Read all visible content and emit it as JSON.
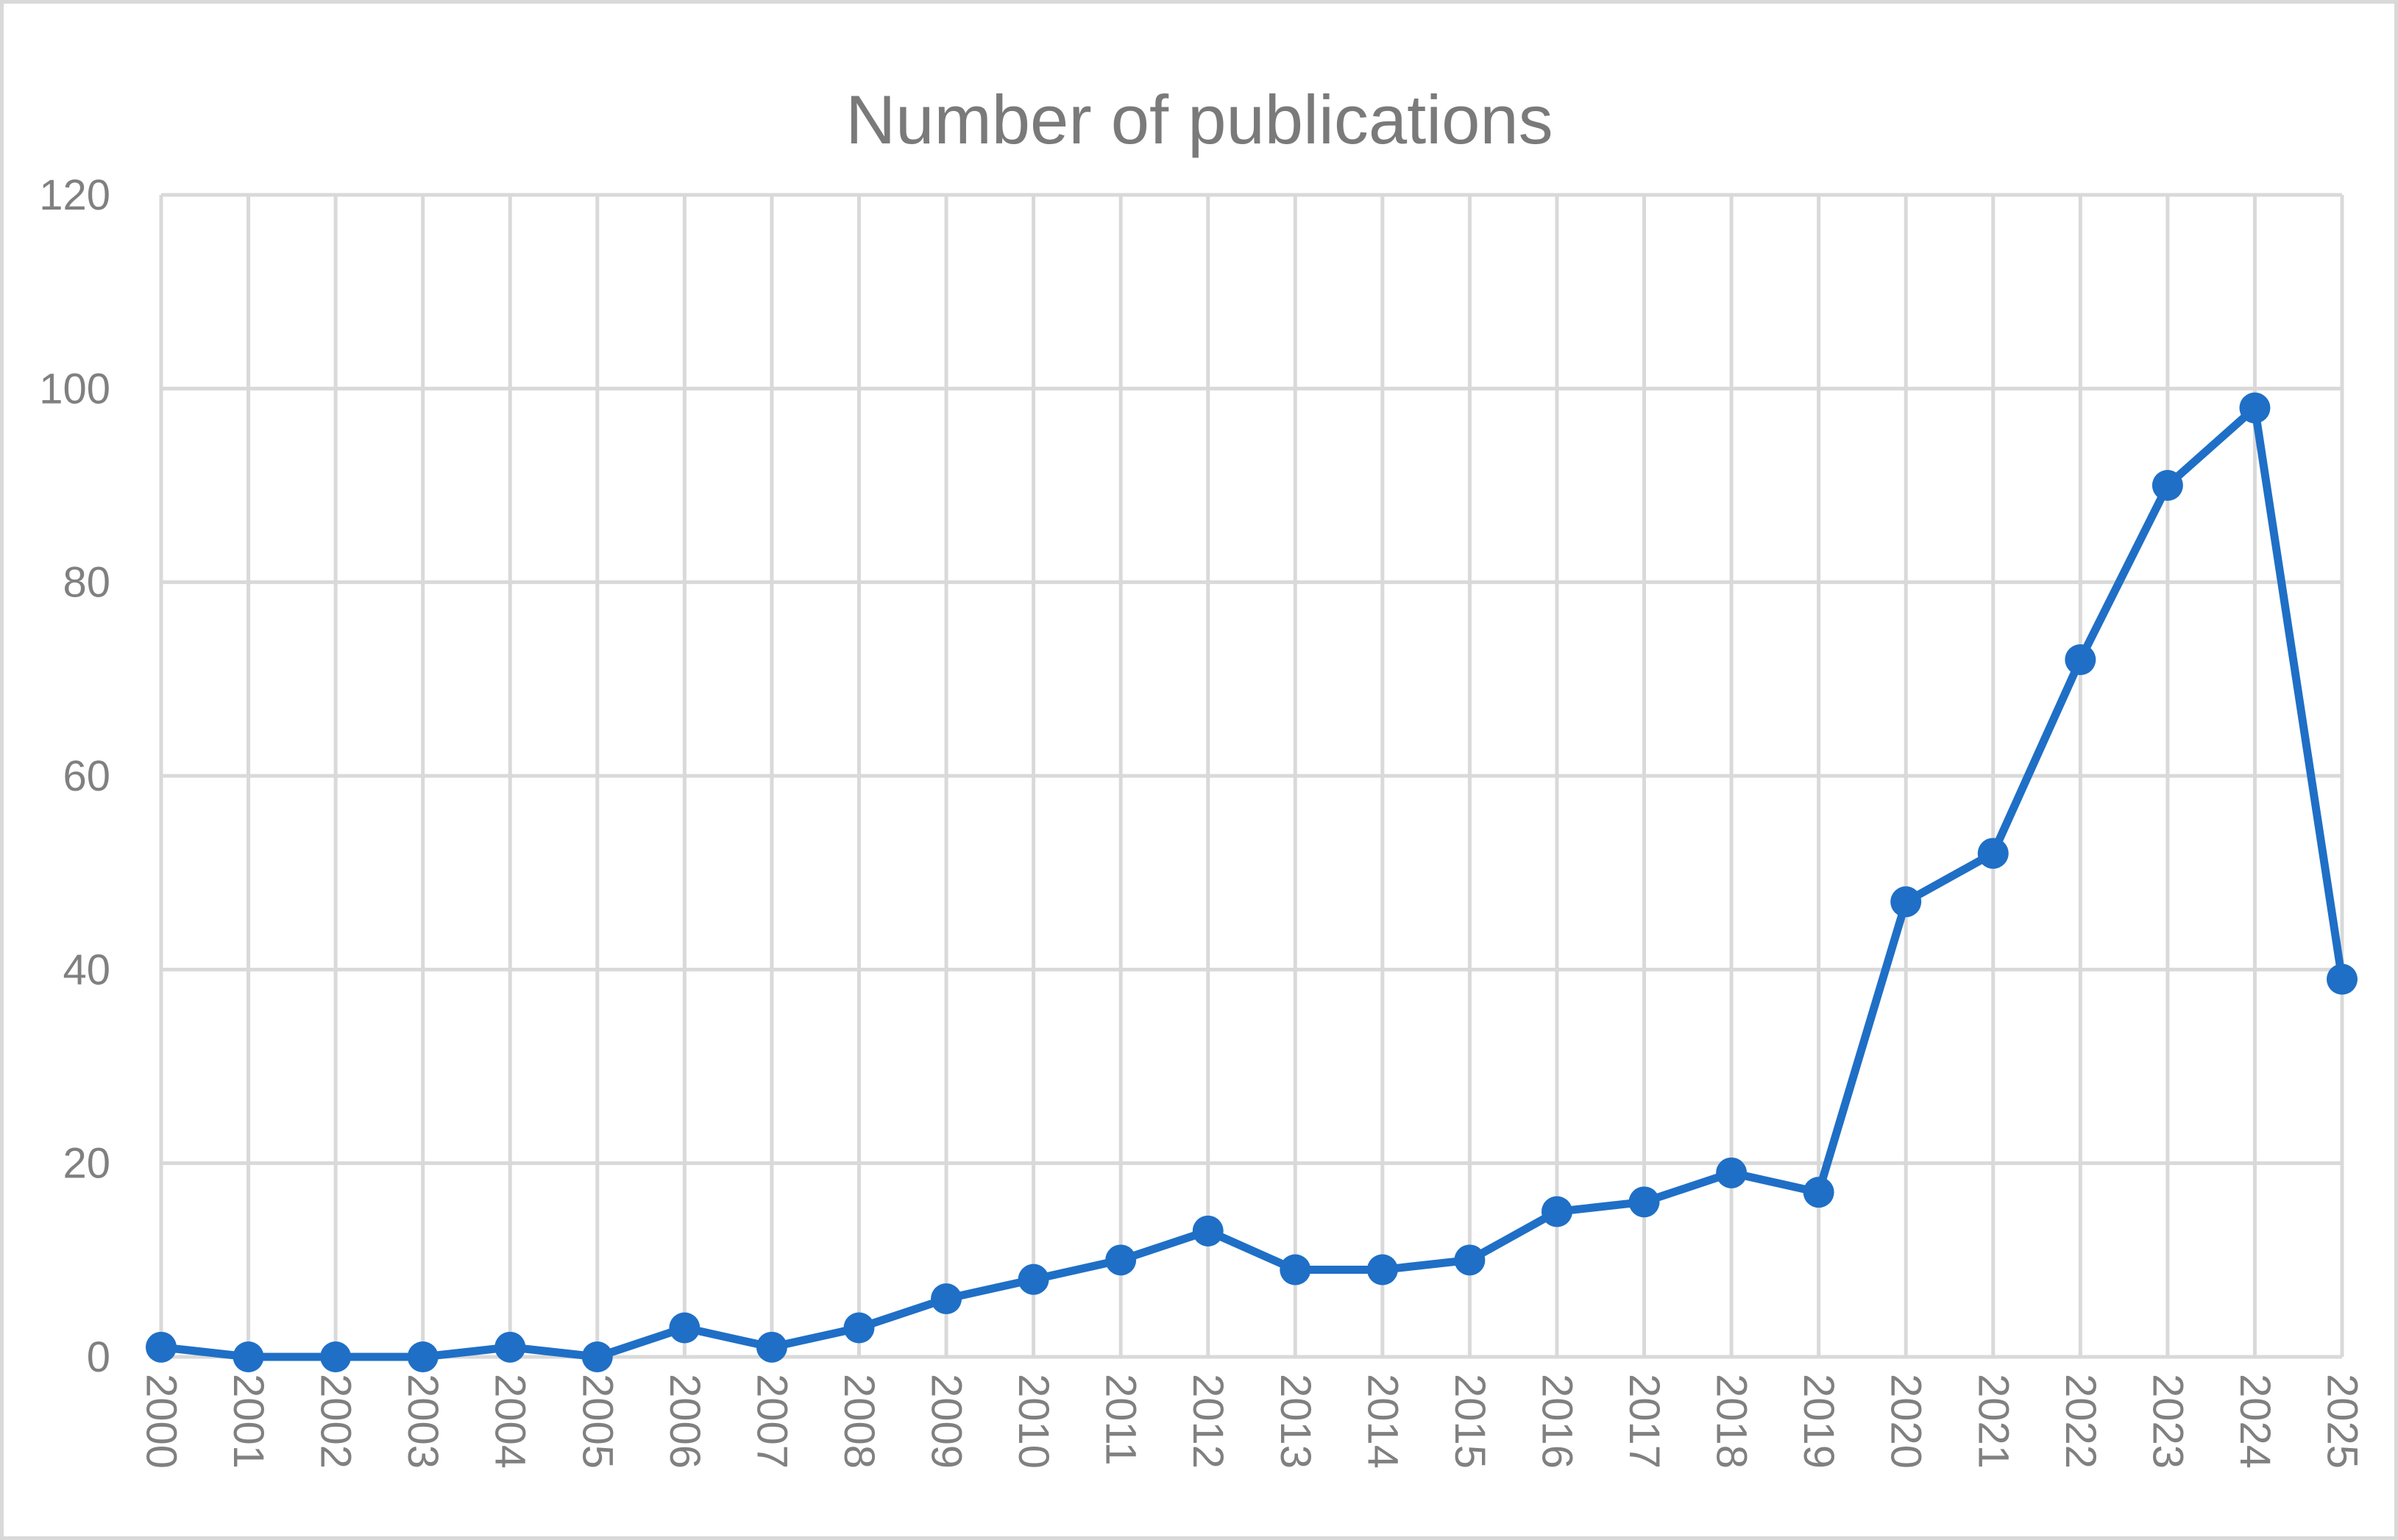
{
  "chart_data": {
    "type": "line",
    "title": "Number of publications",
    "xlabel": "",
    "ylabel": "",
    "categories": [
      "2000",
      "2001",
      "2002",
      "2003",
      "2004",
      "2005",
      "2006",
      "2007",
      "2008",
      "2009",
      "2010",
      "2011",
      "2012",
      "2013",
      "2014",
      "2015",
      "2016",
      "2017",
      "2018",
      "2019",
      "2020",
      "2021",
      "2022",
      "2023",
      "2024",
      "2025"
    ],
    "series": [
      {
        "values": [
          1,
          0,
          0,
          0,
          1,
          0,
          3,
          1,
          3,
          6,
          8,
          10,
          13,
          9,
          9,
          10,
          15,
          16,
          19,
          17,
          47,
          52,
          72,
          90,
          98,
          39
        ]
      }
    ],
    "ylim": [
      0,
      120
    ],
    "yticks": [
      "0",
      "20",
      "40",
      "60",
      "80",
      "100",
      "120"
    ],
    "grid": true,
    "legend": "none",
    "colors": {
      "line": "#1f6fc6",
      "grid": "#d9d9d9",
      "text": "#808080",
      "title": "#7a7a7a",
      "frame": "#d9d9d9"
    }
  }
}
